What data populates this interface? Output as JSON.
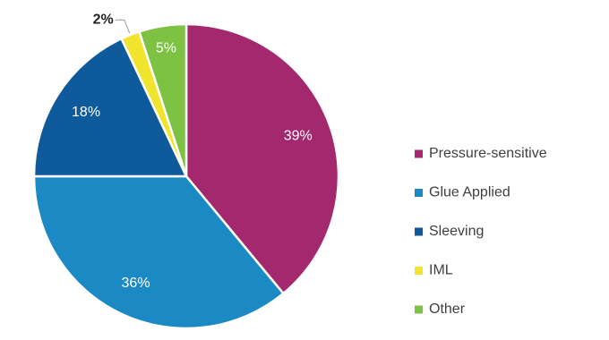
{
  "chart_data": {
    "type": "pie",
    "categories": [
      "Pressure-sensitive",
      "Glue Applied",
      "Sleeving",
      "IML",
      "Other"
    ],
    "values": [
      39,
      36,
      18,
      2,
      5
    ],
    "value_labels": [
      "39%",
      "36%",
      "18%",
      "2%",
      "5%"
    ],
    "colors": [
      "#a3286e",
      "#1b8ac4",
      "#0f5a9a",
      "#f0e52c",
      "#7dc242"
    ],
    "legend": "right"
  }
}
